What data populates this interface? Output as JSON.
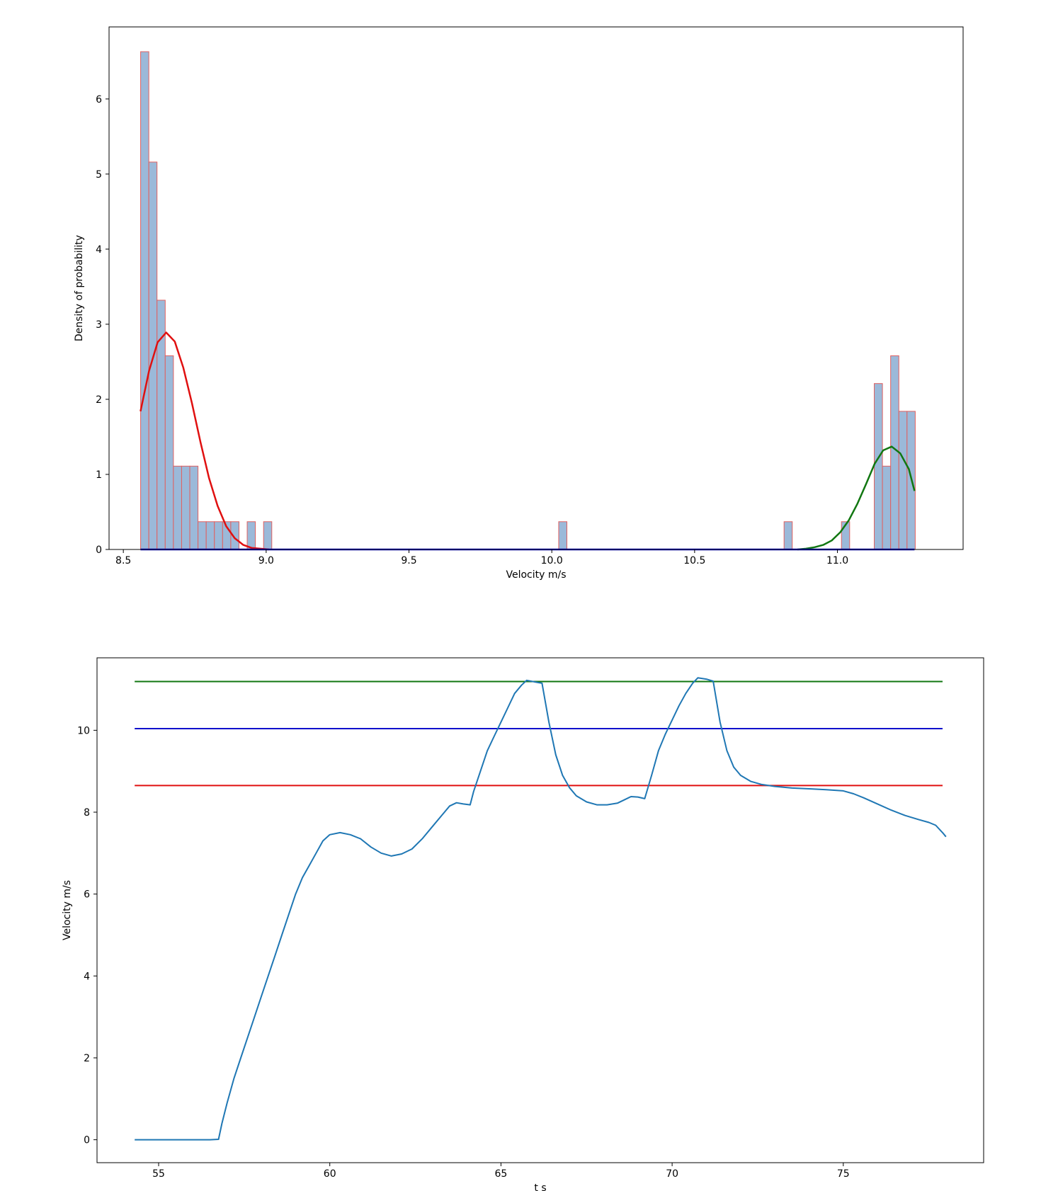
{
  "chart_data": [
    {
      "type": "bar",
      "subtype": "histogram-with-fitted-curves",
      "title": "",
      "xlabel": "Velocity m/s",
      "ylabel": "Density of probability",
      "xlim": [
        8.45,
        11.44
      ],
      "ylim": [
        0,
        6.96
      ],
      "xticks": [
        "8.5",
        "9.0",
        "9.5",
        "10.0",
        "10.5",
        "11.0"
      ],
      "yticks": [
        "0",
        "1",
        "2",
        "3",
        "4",
        "5",
        "6"
      ],
      "grid": false,
      "bar_color": "#9bb9d9",
      "bar_edge_color": "#e06060",
      "bin_width": 0.0287,
      "bins": [
        {
          "x0": 8.5605,
          "height": 6.63
        },
        {
          "x0": 8.5892,
          "height": 5.16
        },
        {
          "x0": 8.6179,
          "height": 3.32
        },
        {
          "x0": 8.6466,
          "height": 2.58
        },
        {
          "x0": 8.6753,
          "height": 1.11
        },
        {
          "x0": 8.704,
          "height": 1.11
        },
        {
          "x0": 8.7327,
          "height": 1.11
        },
        {
          "x0": 8.7614,
          "height": 0.37
        },
        {
          "x0": 8.7901,
          "height": 0.37
        },
        {
          "x0": 8.8188,
          "height": 0.37
        },
        {
          "x0": 8.8475,
          "height": 0.37
        },
        {
          "x0": 8.8762,
          "height": 0.37
        },
        {
          "x0": 8.9336,
          "height": 0.37
        },
        {
          "x0": 8.991,
          "height": 0.37
        },
        {
          "x0": 10.0242,
          "height": 0.37
        },
        {
          "x0": 10.8132,
          "height": 0.37
        },
        {
          "x0": 11.0141,
          "height": 0.37
        },
        {
          "x0": 11.1289,
          "height": 2.21
        },
        {
          "x0": 11.1576,
          "height": 1.11
        },
        {
          "x0": 11.1863,
          "height": 2.58
        },
        {
          "x0": 11.215,
          "height": 1.84
        },
        {
          "x0": 11.2437,
          "height": 1.84
        }
      ],
      "series": [
        {
          "color": "#e01010",
          "type": "line",
          "points": [
            [
              8.56,
              1.84
            ],
            [
              8.59,
              2.38
            ],
            [
              8.62,
              2.76
            ],
            [
              8.65,
              2.89
            ],
            [
              8.68,
              2.77
            ],
            [
              8.71,
              2.42
            ],
            [
              8.74,
              1.95
            ],
            [
              8.77,
              1.43
            ],
            [
              8.8,
              0.95
            ],
            [
              8.83,
              0.58
            ],
            [
              8.86,
              0.31
            ],
            [
              8.89,
              0.15
            ],
            [
              8.92,
              0.06
            ],
            [
              8.95,
              0.02
            ],
            [
              8.98,
              0.01
            ],
            [
              9.01,
              0.0
            ]
          ]
        },
        {
          "color": "#117711",
          "type": "line",
          "points": [
            [
              10.86,
              0.0
            ],
            [
              10.89,
              0.01
            ],
            [
              10.92,
              0.03
            ],
            [
              10.95,
              0.06
            ],
            [
              10.98,
              0.12
            ],
            [
              11.01,
              0.23
            ],
            [
              11.04,
              0.39
            ],
            [
              11.07,
              0.61
            ],
            [
              11.1,
              0.87
            ],
            [
              11.13,
              1.14
            ],
            [
              11.16,
              1.32
            ],
            [
              11.19,
              1.37
            ],
            [
              11.22,
              1.28
            ],
            [
              11.25,
              1.07
            ],
            [
              11.27,
              0.78
            ]
          ]
        },
        {
          "color": "#1010cc",
          "type": "line",
          "points": [
            [
              8.56,
              0.0
            ],
            [
              11.27,
              0.0
            ]
          ]
        }
      ]
    },
    {
      "type": "line",
      "title": "",
      "xlabel": "t s",
      "ylabel": "Velocity m/s",
      "xlim": [
        53.2,
        79.1
      ],
      "ylim": [
        -0.56,
        11.77
      ],
      "xticks": [
        "55",
        "60",
        "65",
        "70",
        "75"
      ],
      "yticks": [
        "0",
        "2",
        "4",
        "6",
        "8",
        "10"
      ],
      "grid": false,
      "hlines": [
        {
          "y": 11.19,
          "xmin": 54.3,
          "xmax": 77.9,
          "color": "#117711"
        },
        {
          "y": 10.04,
          "xmin": 54.3,
          "xmax": 77.9,
          "color": "#1010cc"
        },
        {
          "y": 8.65,
          "xmin": 54.3,
          "xmax": 77.9,
          "color": "#e01010"
        }
      ],
      "series": [
        {
          "color": "#1f77b4",
          "points": [
            [
              54.3,
              0.0
            ],
            [
              55.0,
              0.0
            ],
            [
              55.5,
              0.0
            ],
            [
              56.0,
              0.0
            ],
            [
              56.5,
              0.0
            ],
            [
              56.75,
              0.01
            ],
            [
              56.85,
              0.4
            ],
            [
              57.0,
              0.9
            ],
            [
              57.2,
              1.5
            ],
            [
              57.4,
              2.0
            ],
            [
              57.6,
              2.5
            ],
            [
              57.8,
              3.0
            ],
            [
              58.0,
              3.5
            ],
            [
              58.2,
              4.0
            ],
            [
              58.4,
              4.5
            ],
            [
              58.6,
              5.0
            ],
            [
              58.8,
              5.5
            ],
            [
              59.0,
              6.0
            ],
            [
              59.2,
              6.4
            ],
            [
              59.4,
              6.7
            ],
            [
              59.6,
              7.0
            ],
            [
              59.8,
              7.3
            ],
            [
              60.0,
              7.45
            ],
            [
              60.3,
              7.5
            ],
            [
              60.6,
              7.45
            ],
            [
              60.9,
              7.35
            ],
            [
              61.2,
              7.15
            ],
            [
              61.5,
              7.0
            ],
            [
              61.8,
              6.93
            ],
            [
              62.1,
              6.98
            ],
            [
              62.4,
              7.1
            ],
            [
              62.7,
              7.35
            ],
            [
              63.0,
              7.65
            ],
            [
              63.3,
              7.95
            ],
            [
              63.5,
              8.15
            ],
            [
              63.7,
              8.23
            ],
            [
              63.9,
              8.2
            ],
            [
              64.1,
              8.18
            ],
            [
              64.2,
              8.5
            ],
            [
              64.4,
              9.0
            ],
            [
              64.6,
              9.5
            ],
            [
              64.8,
              9.85
            ],
            [
              65.0,
              10.2
            ],
            [
              65.2,
              10.55
            ],
            [
              65.4,
              10.9
            ],
            [
              65.6,
              11.1
            ],
            [
              65.75,
              11.22
            ],
            [
              66.0,
              11.18
            ],
            [
              66.2,
              11.15
            ],
            [
              66.4,
              10.2
            ],
            [
              66.6,
              9.4
            ],
            [
              66.8,
              8.9
            ],
            [
              67.0,
              8.6
            ],
            [
              67.2,
              8.4
            ],
            [
              67.5,
              8.25
            ],
            [
              67.8,
              8.18
            ],
            [
              68.1,
              8.18
            ],
            [
              68.4,
              8.22
            ],
            [
              68.6,
              8.3
            ],
            [
              68.8,
              8.38
            ],
            [
              69.0,
              8.37
            ],
            [
              69.2,
              8.33
            ],
            [
              69.4,
              8.9
            ],
            [
              69.6,
              9.5
            ],
            [
              69.8,
              9.9
            ],
            [
              70.0,
              10.25
            ],
            [
              70.2,
              10.6
            ],
            [
              70.4,
              10.9
            ],
            [
              70.6,
              11.15
            ],
            [
              70.75,
              11.28
            ],
            [
              71.0,
              11.25
            ],
            [
              71.2,
              11.2
            ],
            [
              71.4,
              10.2
            ],
            [
              71.6,
              9.5
            ],
            [
              71.8,
              9.1
            ],
            [
              72.0,
              8.9
            ],
            [
              72.3,
              8.75
            ],
            [
              72.6,
              8.68
            ],
            [
              73.0,
              8.63
            ],
            [
              73.5,
              8.59
            ],
            [
              74.0,
              8.57
            ],
            [
              74.5,
              8.55
            ],
            [
              75.0,
              8.52
            ],
            [
              75.3,
              8.45
            ],
            [
              75.6,
              8.35
            ],
            [
              76.0,
              8.2
            ],
            [
              76.4,
              8.05
            ],
            [
              76.8,
              7.92
            ],
            [
              77.2,
              7.82
            ],
            [
              77.5,
              7.75
            ],
            [
              77.7,
              7.68
            ],
            [
              77.9,
              7.5
            ],
            [
              78.0,
              7.4
            ]
          ]
        }
      ]
    }
  ]
}
